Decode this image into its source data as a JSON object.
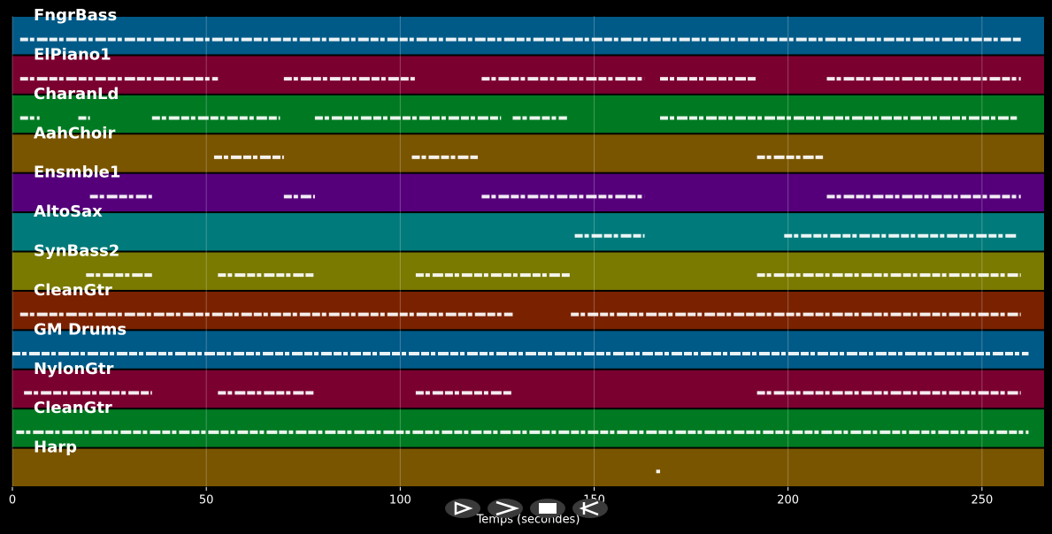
{
  "chart_data": {
    "type": "piano-roll",
    "xlabel": "Temps (secondes)",
    "xlim": [
      0,
      266
    ],
    "xticks": [
      0,
      50,
      100,
      150,
      200,
      250
    ],
    "grid": true,
    "tracks": [
      {
        "name": "FngrBass",
        "color": "#005a87",
        "segments": [
          [
            2,
            260
          ]
        ]
      },
      {
        "name": "ElPiano1",
        "color": "#7a0030",
        "segments": [
          [
            2,
            53
          ],
          [
            70,
            104
          ],
          [
            121,
            163
          ],
          [
            167,
            192
          ],
          [
            210,
            260
          ]
        ]
      },
      {
        "name": "CharanLd",
        "color": "#007a22",
        "segments": [
          [
            2,
            7
          ],
          [
            17,
            20
          ],
          [
            36,
            69
          ],
          [
            78,
            126
          ],
          [
            129,
            143
          ],
          [
            167,
            259
          ]
        ]
      },
      {
        "name": "AahChoir",
        "color": "#7a5500",
        "segments": [
          [
            52,
            70
          ],
          [
            103,
            120
          ],
          [
            192,
            209
          ]
        ]
      },
      {
        "name": "Ensmble1",
        "color": "#55007a",
        "segments": [
          [
            20,
            36
          ],
          [
            70,
            78
          ],
          [
            121,
            163
          ],
          [
            210,
            260
          ]
        ]
      },
      {
        "name": "AltoSax",
        "color": "#007a7a",
        "segments": [
          [
            145,
            163
          ],
          [
            199,
            259
          ]
        ]
      },
      {
        "name": "SynBass2",
        "color": "#7a7a00",
        "segments": [
          [
            19,
            36
          ],
          [
            53,
            78
          ],
          [
            104,
            144
          ],
          [
            192,
            260
          ]
        ]
      },
      {
        "name": "CleanGtr",
        "color": "#7a2200",
        "segments": [
          [
            2,
            129
          ],
          [
            144,
            192
          ],
          [
            192,
            260
          ]
        ]
      },
      {
        "name": "GM Drums",
        "color": "#005a87",
        "segments": [
          [
            0,
            262
          ]
        ]
      },
      {
        "name": "NylonGtr",
        "color": "#7a0030",
        "segments": [
          [
            3,
            36
          ],
          [
            53,
            78
          ],
          [
            104,
            129
          ],
          [
            192,
            260
          ]
        ]
      },
      {
        "name": "CleanGtr",
        "color": "#007a22",
        "segments": [
          [
            1,
            262
          ]
        ]
      },
      {
        "name": "Harp",
        "color": "#7a5500",
        "segments": [
          [
            166,
            167
          ]
        ]
      }
    ]
  }
}
